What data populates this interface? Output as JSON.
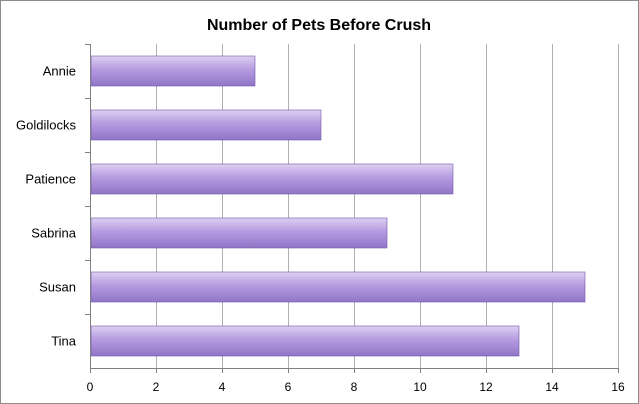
{
  "chart_data": {
    "type": "bar",
    "orientation": "horizontal",
    "title": "Number of Pets Before Crush",
    "xlabel": "",
    "ylabel": "",
    "categories": [
      "Annie",
      "Goldilocks",
      "Patience",
      "Sabrina",
      "Susan",
      "Tina"
    ],
    "values": [
      5,
      7,
      11,
      9,
      15,
      13
    ],
    "xlim": [
      0,
      16
    ],
    "x_ticks": [
      0,
      2,
      4,
      6,
      8,
      10,
      12,
      14,
      16
    ],
    "grid": "vertical",
    "legend": "none",
    "colors": {
      "bar_top": "#ddd0f2",
      "bar_mid": "#b59be0",
      "bar_bottom": "#9175c8",
      "bar_edge": "#6e58a6",
      "grid": "#b0b0b0",
      "axis": "#808080"
    }
  }
}
